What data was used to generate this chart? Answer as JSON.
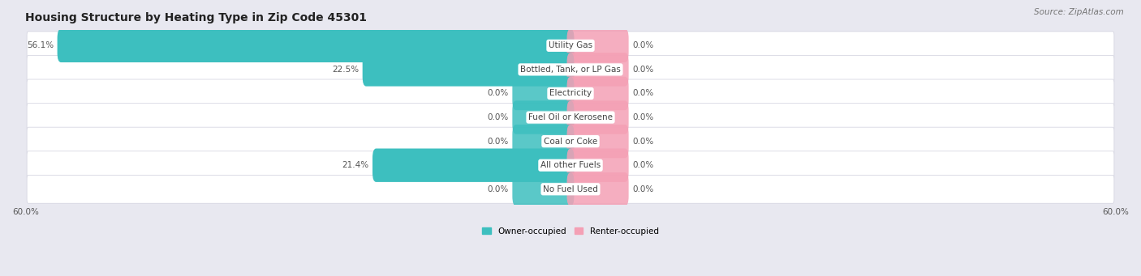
{
  "title": "Housing Structure by Heating Type in Zip Code 45301",
  "source": "Source: ZipAtlas.com",
  "categories": [
    "Utility Gas",
    "Bottled, Tank, or LP Gas",
    "Electricity",
    "Fuel Oil or Kerosene",
    "Coal or Coke",
    "All other Fuels",
    "No Fuel Used"
  ],
  "owner_values": [
    56.1,
    22.5,
    0.0,
    0.0,
    0.0,
    21.4,
    0.0
  ],
  "renter_values": [
    0.0,
    0.0,
    0.0,
    0.0,
    0.0,
    0.0,
    0.0
  ],
  "owner_color": "#3DBFBF",
  "renter_color": "#F4A0B5",
  "owner_label": "Owner-occupied",
  "renter_label": "Renter-occupied",
  "xlim": 60.0,
  "background_color": "#e8e8f0",
  "row_bg_color": "#f5f5fa",
  "title_fontsize": 10,
  "source_fontsize": 7.5,
  "value_fontsize": 7.5,
  "cat_fontsize": 7.5,
  "bar_height": 0.6,
  "renter_placeholder": 6.0,
  "owner_placeholder": 6.0,
  "label_color": "#555555",
  "category_label_color": "#444444"
}
